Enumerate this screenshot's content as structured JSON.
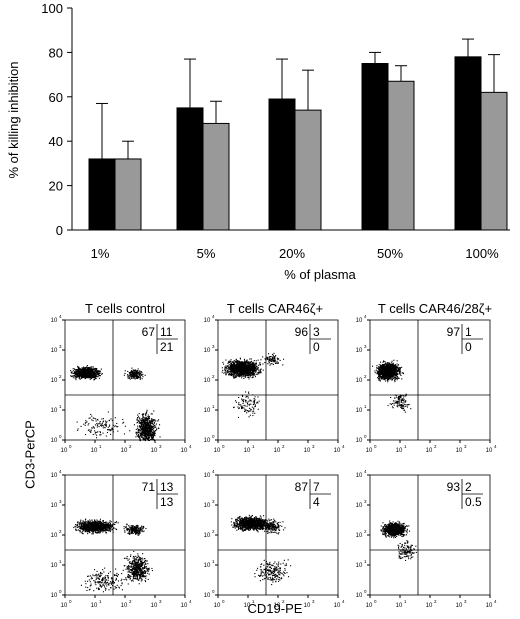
{
  "chart_data": [
    {
      "type": "bar",
      "title": "",
      "ylabel": "% of killing inhibition",
      "xlabel": "% of plasma",
      "categories": [
        "1%",
        "5%",
        "20%",
        "50%",
        "100%"
      ],
      "ylim": [
        0,
        100
      ],
      "yticks": [
        0,
        20,
        40,
        60,
        80,
        100
      ],
      "grid": false,
      "legend": "none",
      "series": [
        {
          "color": "#000000",
          "values": [
            32,
            55,
            59,
            75,
            78
          ],
          "error": [
            25,
            22,
            18,
            5,
            8
          ]
        },
        {
          "color": "#999999",
          "values": [
            32,
            48,
            54,
            67,
            62
          ],
          "error": [
            8,
            10,
            18,
            7,
            17
          ]
        }
      ]
    },
    {
      "type": "scatter",
      "subtype": "flow-cytometry-quadrant-grid",
      "xlabel": "CD19-PE",
      "ylabel": "CD3-PerCP",
      "axis_scale": "log",
      "ticks": [
        {
          "base": "10",
          "exp": "0"
        },
        {
          "base": "10",
          "exp": "1"
        },
        {
          "base": "10",
          "exp": "2"
        },
        {
          "base": "10",
          "exp": "3"
        },
        {
          "base": "10",
          "exp": "4"
        }
      ],
      "column_titles": [
        "T cells control",
        "T cells CAR46ζ+",
        "T cells CAR46/28ζ+"
      ],
      "panels": [
        {
          "q_upper_left": "67",
          "q_upper_right": "11",
          "q_lower_right": "21",
          "gate": [
            1.6,
            1.5
          ]
        },
        {
          "q_upper_left": "96",
          "q_upper_right": "3",
          "q_lower_right": "0",
          "gate": [
            1.6,
            1.5
          ]
        },
        {
          "q_upper_left": "97",
          "q_upper_right": "1",
          "q_lower_right": "0",
          "gate": [
            1.6,
            1.5
          ]
        },
        {
          "q_upper_left": "71",
          "q_upper_right": "13",
          "q_lower_right": "13",
          "gate": [
            1.6,
            1.5
          ]
        },
        {
          "q_upper_left": "87",
          "q_upper_right": "7",
          "q_lower_right": "4",
          "gate": [
            1.6,
            1.5
          ]
        },
        {
          "q_upper_left": "93",
          "q_upper_right": "2",
          "q_lower_right": "0.5",
          "gate": [
            1.6,
            1.5
          ]
        }
      ]
    }
  ]
}
